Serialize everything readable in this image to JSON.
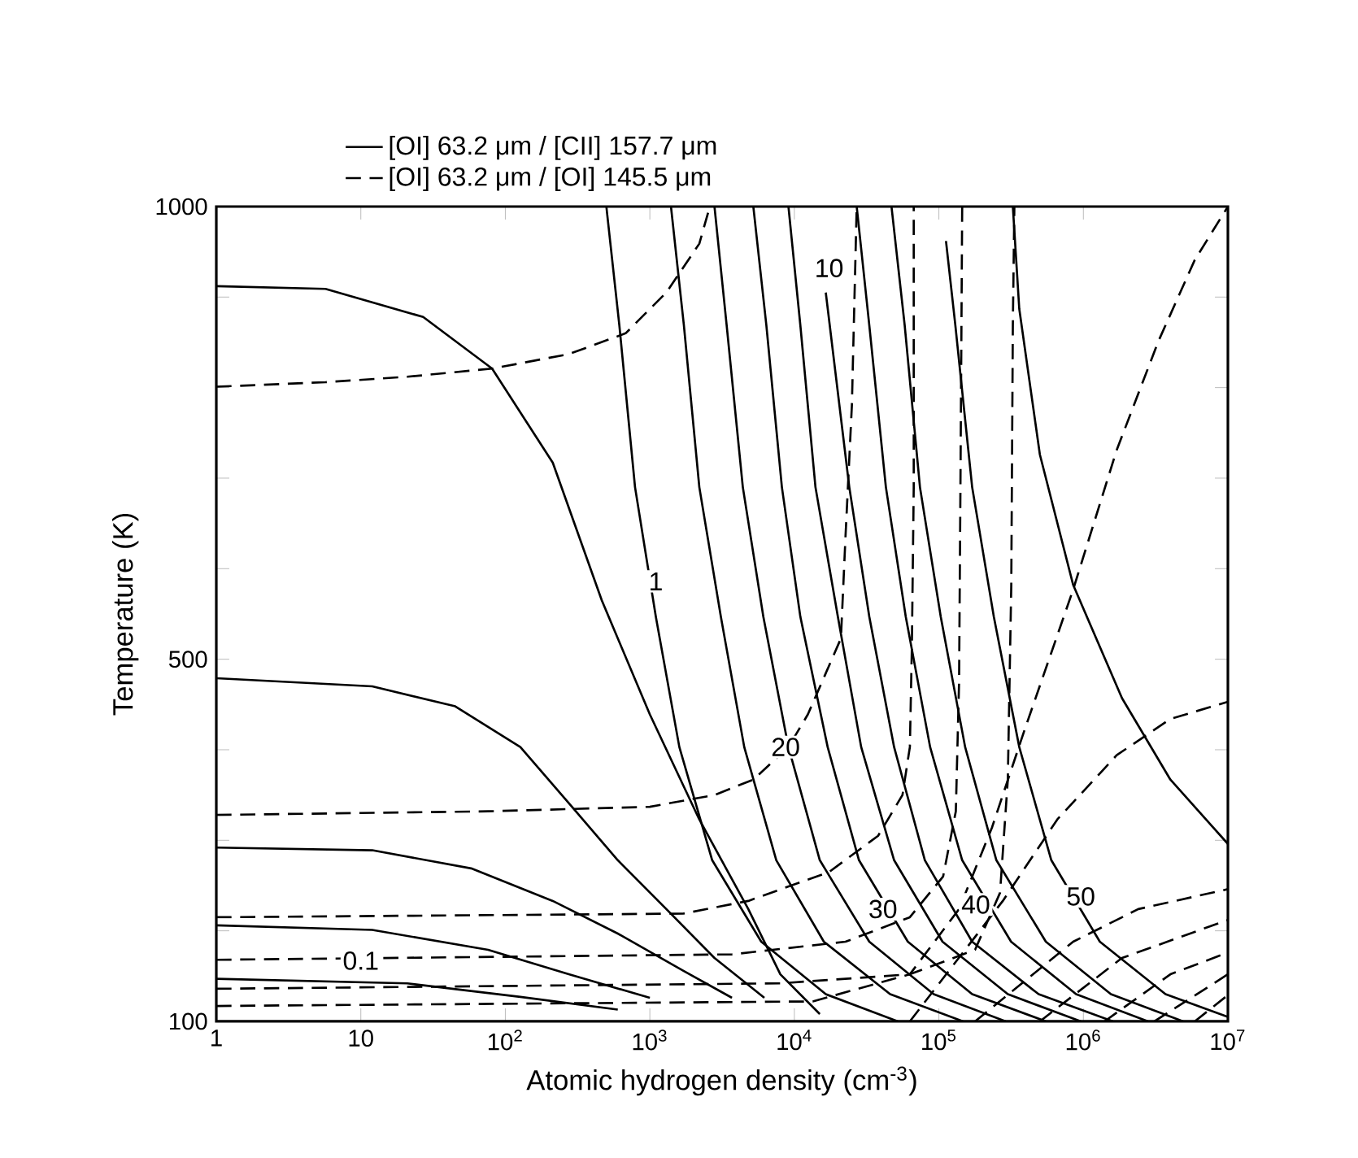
{
  "chart_data": {
    "type": "line",
    "xlabel": "Atomic hydrogen density (cm$^{-3}$)",
    "ylabel": "Temperature (K)",
    "log": "x",
    "legend": "top",
    "xlim": [
      1,
      10000000
    ],
    "ylim": [
      100,
      1000
    ],
    "xticks": [
      1,
      10,
      {
        "value": 100,
        "label": "10$^{2}$"
      },
      {
        "value": 1000,
        "label": "10$^{3}$"
      },
      {
        "value": 10000,
        "label": "10$^{4}$"
      },
      {
        "value": 100000,
        "label": "10$^{5}$"
      },
      {
        "value": 1000000,
        "label": "10$^{6}$"
      },
      {
        "value": 10000000,
        "label": "10$^{7}$"
      }
    ],
    "yticks": [
      100,
      {
        "value": 200,
        "label": null
      },
      {
        "value": 300,
        "label": null
      },
      {
        "value": 400,
        "label": null
      },
      500,
      {
        "value": 600,
        "label": null
      },
      {
        "value": 700,
        "label": null
      },
      {
        "value": 800,
        "label": null
      },
      {
        "value": 900,
        "label": null
      },
      1000
    ],
    "annotations": [
      {
        "text": "0.1",
        "x": 10,
        "y": 167
      },
      {
        "text": "1",
        "x": 1100,
        "y": 586
      },
      {
        "text": "10",
        "x": 17400,
        "y": 932
      },
      {
        "text": "20",
        "x": 8700,
        "y": 403
      },
      {
        "text": "30",
        "x": 41000,
        "y": 224
      },
      {
        "text": "40",
        "x": 180000,
        "y": 229
      },
      {
        "text": "50",
        "x": 960000,
        "y": 238
      }
    ],
    "series": [
      {
        "name": "[OI] 63.2 μm / [CII] 157.7 μm",
        "color": "#000000",
        "line_style": "solid",
        "x": [
          1,
          5.7,
          27,
          81,
          213,
          465,
          1000,
          2200,
          4800,
          8000,
          15000
        ],
        "values": [
          912,
          909,
          878,
          821,
          717,
          565,
          439,
          323,
          224,
          152,
          108
        ]
      },
      {
        "name": "[OI] 63.2 μm / [OI] 145.5 μm",
        "color": "#000000",
        "line_style": "dashed",
        "x": [
          1,
          5.7,
          21,
          81,
          275,
          680,
          1300,
          2200,
          2600
        ],
        "values": [
          801,
          806,
          812,
          821,
          837,
          860,
          905,
          959,
          1000
        ]
      },
      {
        "color": "#000000",
        "line_style": "solid",
        "x": [
          1,
          12,
          45,
          127,
          275,
          600,
          1300,
          2800,
          6200
        ],
        "values": [
          479,
          470,
          448,
          403,
          341,
          278,
          224,
          170,
          126
        ]
      },
      {
        "color": "#000000",
        "line_style": "solid",
        "x": [
          1,
          12,
          58,
          213,
          600,
          1700,
          3700
        ],
        "values": [
          292,
          289,
          269,
          233,
          197,
          156,
          126
        ]
      },
      {
        "color": "#000000",
        "line_style": "solid",
        "x": [
          1,
          12,
          76,
          275,
          1000
        ],
        "values": [
          206,
          201,
          179,
          152,
          126
        ]
      },
      {
        "color": "#000000",
        "line_style": "solid",
        "x": [
          1,
          21,
          127,
          600
        ],
        "values": [
          147,
          142,
          127,
          113
        ]
      },
      {
        "color": "#000000",
        "line_style": "solid",
        "x": [
          500,
          615,
          790,
          1100,
          1600,
          2700,
          5900,
          16500,
          52000
        ],
        "values": [
          1000,
          869,
          690,
          547,
          403,
          278,
          188,
          130,
          100
        ]
      },
      {
        "color": "#000000",
        "line_style": "solid",
        "x": [
          1400,
          1720,
          2200,
          3100,
          4500,
          7500,
          16000,
          46000,
          147000
        ],
        "values": [
          1000,
          869,
          690,
          547,
          403,
          278,
          188,
          130,
          100
        ]
      },
      {
        "color": "#000000",
        "line_style": "solid",
        "x": [
          2800,
          3400,
          4400,
          6100,
          9100,
          15000,
          33000,
          92000,
          290000
        ],
        "values": [
          1000,
          869,
          690,
          547,
          403,
          278,
          188,
          130,
          100
        ]
      },
      {
        "color": "#000000",
        "line_style": "solid",
        "x": [
          5200,
          6400,
          8200,
          11000,
          17000,
          28000,
          61000,
          170000,
          550000
        ],
        "values": [
          1000,
          869,
          690,
          547,
          403,
          278,
          188,
          130,
          100
        ]
      },
      {
        "color": "#000000",
        "line_style": "solid",
        "x": [
          9100,
          11000,
          14000,
          20000,
          29000,
          49000,
          106000,
          300000,
          960000
        ],
        "values": [
          1000,
          869,
          690,
          547,
          403,
          278,
          188,
          130,
          100
        ]
      },
      {
        "color": "#000000",
        "line_style": "solid",
        "x": [
          16500,
          24000,
          33000,
          49000,
          80000,
          170000,
          490000,
          1600000
        ],
        "values": [
          905,
          690,
          547,
          403,
          278,
          188,
          130,
          100
        ]
      },
      {
        "color": "#000000",
        "line_style": "solid",
        "x": [
          27000,
          33000,
          43000,
          59000,
          87000,
          145000,
          316000,
          890000,
          2800000
        ],
        "values": [
          1000,
          869,
          690,
          547,
          403,
          278,
          188,
          130,
          100
        ]
      },
      {
        "color": "#000000",
        "line_style": "solid",
        "x": [
          47000,
          58000,
          74000,
          103000,
          152000,
          250000,
          550000,
          1550000,
          4900000
        ],
        "values": [
          1000,
          869,
          690,
          547,
          403,
          278,
          188,
          130,
          100
        ]
      },
      {
        "color": "#000000",
        "line_style": "solid",
        "x": [
          112000,
          130000,
          170000,
          240000,
          360000,
          600000,
          1300000,
          3700000,
          10000000
        ],
        "values": [
          962,
          869,
          690,
          547,
          403,
          278,
          188,
          130,
          105
        ]
      },
      {
        "color": "#000000",
        "line_style": "solid",
        "x": [
          325000,
          360000,
          500000,
          850000,
          1850000,
          4000000,
          10000000
        ],
        "values": [
          1000,
          887,
          726,
          582,
          457,
          367,
          296
        ]
      },
      {
        "color": "#000000",
        "line_style": "dashed",
        "x": [
          1,
          76,
          1000,
          2800,
          5200,
          9100,
          12400,
          17400,
          21000,
          22600,
          25000,
          27000
        ],
        "values": [
          328,
          332,
          337,
          350,
          367,
          403,
          439,
          493,
          523,
          636,
          780,
          1000
        ]
      },
      {
        "color": "#000000",
        "line_style": "dashed",
        "x": [
          1,
          1700,
          4800,
          17400,
          38000,
          56000,
          63000,
          65000,
          67000,
          67000
        ],
        "values": [
          215,
          219,
          233,
          265,
          305,
          350,
          403,
          511,
          690,
          1000
        ]
      },
      {
        "color": "#000000",
        "line_style": "dashed",
        "x": [
          1,
          3700,
          22600,
          63000,
          107000,
          131000,
          138000,
          141000,
          145000
        ],
        "values": [
          168,
          174,
          188,
          215,
          260,
          332,
          475,
          690,
          1000
        ]
      },
      {
        "color": "#000000",
        "line_style": "dashed",
        "x": [
          1,
          8000,
          63000,
          178000,
          265000,
          300000,
          317000,
          325000,
          333000
        ],
        "values": [
          136,
          142,
          152,
          179,
          242,
          367,
          582,
          869,
          1000
        ]
      },
      {
        "color": "#000000",
        "line_style": "dashed",
        "x": [
          1,
          13400,
          63000,
          138000,
          233000,
          390000,
          850000,
          1700000,
          3300000,
          5900000,
          10000000
        ],
        "values": [
          117,
          122,
          152,
          224,
          314,
          421,
          577,
          731,
          851,
          941,
          1000
        ]
      },
      {
        "color": "#000000",
        "line_style": "dashed",
        "x": [
          63000,
          277000,
          660000,
          1700000,
          4000000,
          10000000
        ],
        "values": [
          100,
          233,
          323,
          394,
          434,
          453
        ]
      },
      {
        "color": "#000000",
        "line_style": "dashed",
        "x": [
          178000,
          850000,
          2400000,
          10000000
        ],
        "values": [
          100,
          188,
          224,
          246
        ]
      },
      {
        "color": "#000000",
        "line_style": "dashed",
        "x": [
          500000,
          1850000,
          10000000
        ],
        "values": [
          100,
          170,
          212
        ]
      },
      {
        "color": "#000000",
        "line_style": "dashed",
        "x": [
          1400000,
          4000000,
          10000000
        ],
        "values": [
          100,
          152,
          176
        ]
      },
      {
        "color": "#000000",
        "line_style": "dashed",
        "x": [
          3100000,
          10000000
        ],
        "values": [
          100,
          152
        ]
      },
      {
        "color": "#000000",
        "line_style": "dashed",
        "x": [
          5900000,
          10000000
        ],
        "values": [
          100,
          129
        ]
      }
    ]
  }
}
